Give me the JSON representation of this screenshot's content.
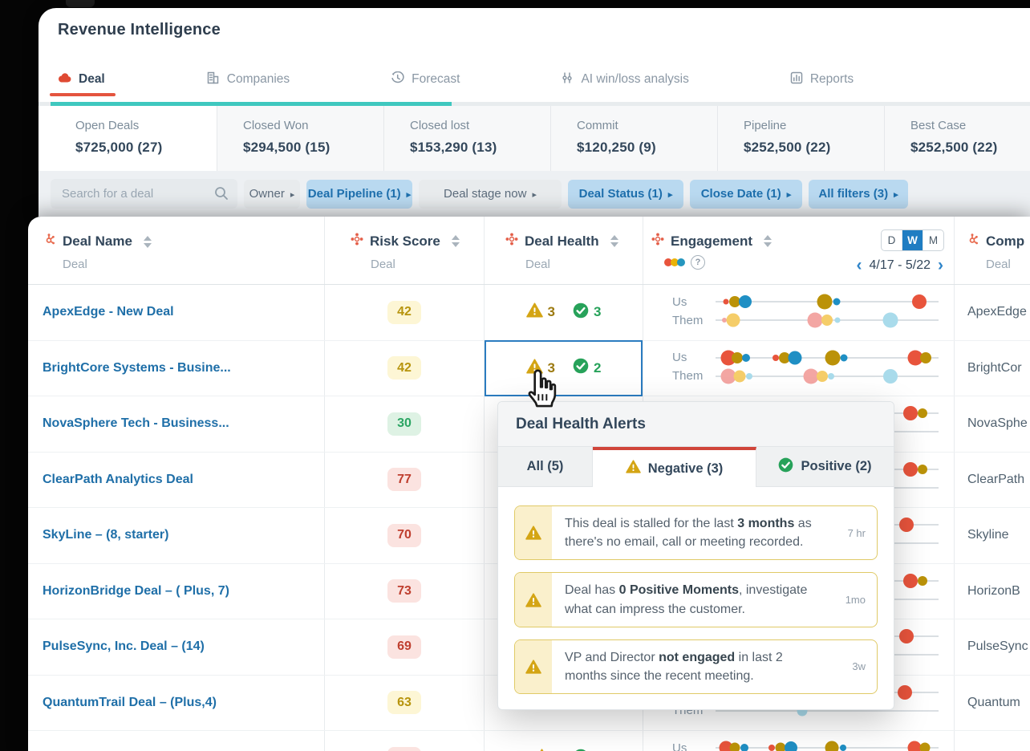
{
  "header": {
    "title": "Revenue Intelligence"
  },
  "nav": {
    "tabs": [
      {
        "label": "Deal",
        "icon": "deal-cloud-icon",
        "active": true
      },
      {
        "label": "Companies",
        "icon": "building-icon",
        "active": false
      },
      {
        "label": "Forecast",
        "icon": "clock-icon",
        "active": false
      },
      {
        "label": "AI win/loss analysis",
        "icon": "sliders-icon",
        "active": false
      },
      {
        "label": "Reports",
        "icon": "bar-chart-icon",
        "active": false
      }
    ]
  },
  "summary_cards": [
    {
      "label": "Open Deals",
      "value": "$725,000 (27)",
      "active": true
    },
    {
      "label": "Closed Won",
      "value": "$294,500 (15)",
      "active": false
    },
    {
      "label": "Closed lost",
      "value": "$153,290 (13)",
      "active": false
    },
    {
      "label": "Commit",
      "value": "$120,250 (9)",
      "active": false
    },
    {
      "label": "Pipeline",
      "value": "$252,500 (22)",
      "active": false
    },
    {
      "label": "Best Case",
      "value": "$252,500 (22)",
      "active": false
    }
  ],
  "filters": {
    "search_placeholder": "Search for a deal",
    "chips": [
      {
        "label": "Owner",
        "active": false
      },
      {
        "label": "Deal Pipeline (1)",
        "active": true
      },
      {
        "label": "Deal stage now",
        "active": false
      },
      {
        "label": "Deal Status (1)",
        "active": true
      },
      {
        "label": "Close Date (1)",
        "active": true
      },
      {
        "label": "All filters (3)",
        "active": true
      }
    ]
  },
  "icons": {
    "chip_arrow": "▸",
    "prev": "‹",
    "next": "›",
    "help": "?"
  },
  "table": {
    "columns": [
      {
        "title": "Deal Name",
        "subtitle": "Deal"
      },
      {
        "title": "Risk Score",
        "subtitle": "Deal"
      },
      {
        "title": "Deal Health",
        "subtitle": "Deal"
      },
      {
        "title": "Engagement",
        "subtitle": ""
      },
      {
        "title": "Comp",
        "subtitle": "Deal"
      }
    ],
    "engagement_header": {
      "options": [
        "D",
        "W",
        "M"
      ],
      "selected": "W",
      "date_range": "4/17 - 5/22"
    },
    "engagement_labels": {
      "us": "Us",
      "them": "Them"
    },
    "rows": [
      {
        "deal_name": "ApexEdge - New Deal",
        "risk_score": "42",
        "risk_level": "yellow",
        "health": {
          "neg": "3",
          "pos": "3"
        },
        "health_selected": false,
        "company": "ApexEdge",
        "us": [
          {
            "p": 4.7,
            "r": 3.5,
            "c": "red"
          },
          {
            "p": 8.6,
            "r": 7,
            "c": "olive"
          },
          {
            "p": 13.3,
            "r": 8,
            "c": "blue"
          },
          {
            "p": 48.9,
            "r": 9.5,
            "c": "olive"
          },
          {
            "p": 54.3,
            "r": 4.5,
            "c": "blue"
          },
          {
            "p": 91.4,
            "r": 9,
            "c": "red"
          }
        ],
        "them": [
          {
            "p": 4,
            "r": 3,
            "c": "pink"
          },
          {
            "p": 7.9,
            "r": 8.5,
            "c": "yellow"
          },
          {
            "p": 44.6,
            "r": 9.5,
            "c": "pink"
          },
          {
            "p": 50,
            "r": 7,
            "c": "yellow"
          },
          {
            "p": 54.7,
            "r": 3.5,
            "c": "lightblue"
          },
          {
            "p": 78.4,
            "r": 9.5,
            "c": "lightblue"
          }
        ]
      },
      {
        "deal_name": "BrightCore Systems - Busine...",
        "risk_score": "42",
        "risk_level": "yellow",
        "health": {
          "neg": "3",
          "pos": "2"
        },
        "health_selected": true,
        "company": "BrightCor",
        "us": [
          {
            "p": 5.8,
            "r": 9.5,
            "c": "red"
          },
          {
            "p": 9.7,
            "r": 7,
            "c": "olive"
          },
          {
            "p": 13.7,
            "r": 5,
            "c": "blue"
          },
          {
            "p": 27,
            "r": 4,
            "c": "red"
          },
          {
            "p": 30.9,
            "r": 7,
            "c": "olive"
          },
          {
            "p": 35.6,
            "r": 8.5,
            "c": "blue"
          },
          {
            "p": 52.5,
            "r": 9.5,
            "c": "olive"
          },
          {
            "p": 57.6,
            "r": 4.5,
            "c": "blue"
          },
          {
            "p": 89.6,
            "r": 9.5,
            "c": "red"
          },
          {
            "p": 94.2,
            "r": 7,
            "c": "olive"
          }
        ],
        "them": [
          {
            "p": 5.8,
            "r": 9.5,
            "c": "pink"
          },
          {
            "p": 10.8,
            "r": 7.5,
            "c": "yellow"
          },
          {
            "p": 15.1,
            "r": 4,
            "c": "lightblue"
          },
          {
            "p": 42.8,
            "r": 9.5,
            "c": "pink"
          },
          {
            "p": 47.8,
            "r": 7,
            "c": "yellow"
          },
          {
            "p": 51.8,
            "r": 4,
            "c": "lightblue"
          },
          {
            "p": 78.4,
            "r": 9,
            "c": "lightblue"
          }
        ]
      },
      {
        "deal_name": "NovaSphere Tech - Business...",
        "risk_score": "30",
        "risk_level": "green",
        "health": null,
        "health_selected": false,
        "company": "NovaSphe",
        "us": [
          {
            "p": 87.4,
            "r": 9,
            "c": "red"
          },
          {
            "p": 92.8,
            "r": 6,
            "c": "olive"
          }
        ],
        "them": []
      },
      {
        "deal_name": "ClearPath Analytics Deal",
        "risk_score": "77",
        "risk_level": "red",
        "health": null,
        "health_selected": false,
        "company": "ClearPath",
        "us": [
          {
            "p": 87.4,
            "r": 9,
            "c": "red"
          },
          {
            "p": 92.8,
            "r": 6,
            "c": "olive"
          }
        ],
        "them": []
      },
      {
        "deal_name": "SkyLine – (8, starter)",
        "risk_score": "70",
        "risk_level": "red",
        "health": null,
        "health_selected": false,
        "company": "Skyline",
        "us": [
          {
            "p": 85.6,
            "r": 9,
            "c": "red"
          }
        ],
        "them": []
      },
      {
        "deal_name": "HorizonBridge Deal – ( Plus, 7)",
        "risk_score": "73",
        "risk_level": "red",
        "health": null,
        "health_selected": false,
        "company": "HorizonB",
        "us": [
          {
            "p": 87.4,
            "r": 9,
            "c": "red"
          },
          {
            "p": 92.8,
            "r": 6,
            "c": "olive"
          }
        ],
        "them": []
      },
      {
        "deal_name": "PulseSync, Inc. Deal – (14)",
        "risk_score": "69",
        "risk_level": "red",
        "health": null,
        "health_selected": false,
        "company": "PulseSync",
        "us": [
          {
            "p": 85.6,
            "r": 9,
            "c": "red"
          }
        ],
        "them": []
      },
      {
        "deal_name": "QuantumTrail Deal – (Plus,4)",
        "risk_score": "63",
        "risk_level": "yellow",
        "health": null,
        "health_selected": false,
        "company": "Quantum",
        "us": [
          {
            "p": 84.9,
            "r": 9,
            "c": "red"
          }
        ],
        "them": [
          {
            "p": 38.8,
            "r": 6.5,
            "c": "lightblue"
          }
        ]
      },
      {
        "deal_name": "",
        "risk_score": "",
        "risk_level": "red",
        "health": {
          "neg": "",
          "pos": ""
        },
        "health_selected": false,
        "company": "",
        "us": [
          {
            "p": 4.7,
            "r": 8.5,
            "c": "red"
          },
          {
            "p": 8.6,
            "r": 6.5,
            "c": "olive"
          },
          {
            "p": 12.9,
            "r": 5,
            "c": "blue"
          },
          {
            "p": 25.2,
            "r": 4,
            "c": "red"
          },
          {
            "p": 29.1,
            "r": 6.5,
            "c": "olive"
          },
          {
            "p": 33.8,
            "r": 8,
            "c": "blue"
          },
          {
            "p": 52.2,
            "r": 8.5,
            "c": "olive"
          },
          {
            "p": 57.2,
            "r": 4,
            "c": "blue"
          },
          {
            "p": 89.2,
            "r": 8.5,
            "c": "red"
          },
          {
            "p": 93.9,
            "r": 6.5,
            "c": "olive"
          }
        ],
        "them": []
      }
    ]
  },
  "popup": {
    "title": "Deal Health Alerts",
    "tabs": [
      {
        "label": "All (5)",
        "active": false,
        "icon": null
      },
      {
        "label": "Negative (3)",
        "active": true,
        "icon": "warning"
      },
      {
        "label": "Positive (2)",
        "active": false,
        "icon": "check"
      }
    ],
    "alerts": [
      {
        "pre": "This deal is stalled for the last ",
        "bold": "3 months",
        "post": " as there's no email, call or meeting recorded.",
        "time": "7 hr"
      },
      {
        "pre": "Deal has ",
        "bold": "0 Positive Moments",
        "post": ", investigate what can impress the customer.",
        "time": "1mo"
      },
      {
        "pre": "VP and Director ",
        "bold": "not engaged",
        "post": " in last 2 months since the recent meeting.",
        "time": "3w"
      }
    ]
  },
  "colors": {
    "accent_red": "#e4543e",
    "teal": "#3fc8bf",
    "link_blue": "#1f6fa8",
    "chip_blue_bg": "#b9d9f0",
    "warning": "#d4a514",
    "positive": "#27a25a",
    "selected_cell_border": "#2b7cc0",
    "dot_red": "#e8543c",
    "dot_olive": "#bb9208",
    "dot_blue": "#1f8fc4",
    "dot_pink": "#f3a6a3",
    "dot_yellow": "#f5cd69",
    "dot_lightblue": "#a9dbeb",
    "risk_yellow_text": "#b7940d",
    "risk_green_text": "#2ba563",
    "risk_red_text": "#bf3f2f"
  }
}
